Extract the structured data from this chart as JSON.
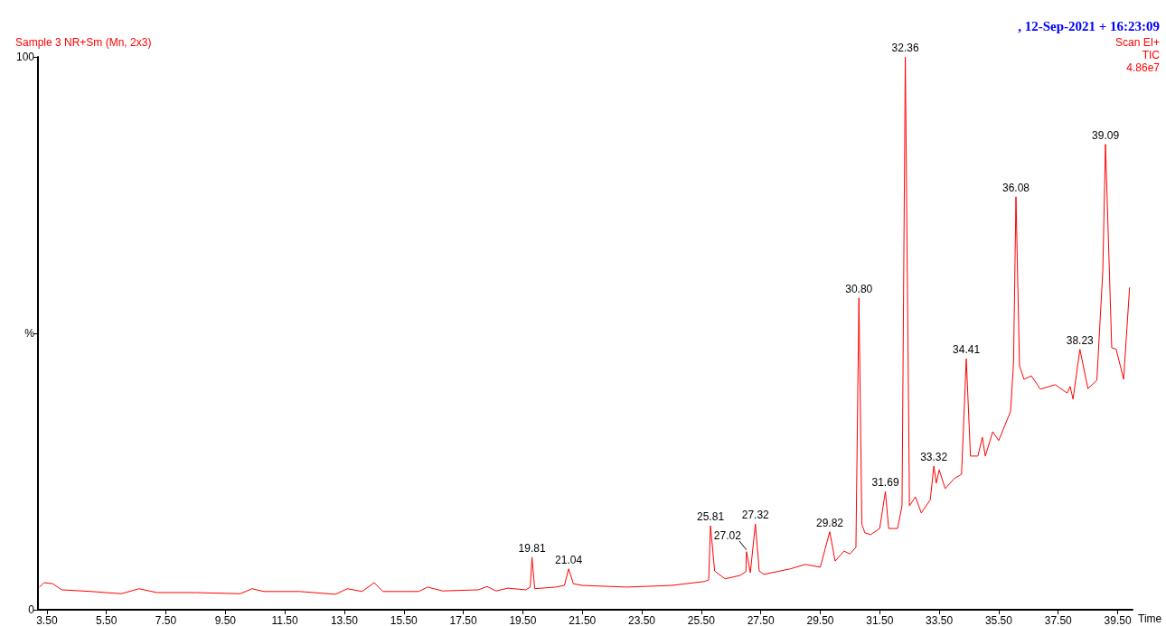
{
  "chart_data": {
    "type": "line",
    "title": "Sample 3 NR+Sm (Mn, 2x3)",
    "subtitle": ", 12-Sep-2021 + 16:23:09",
    "xlabel": "Time",
    "x": [
      3.25,
      3.4,
      3.7,
      4.0,
      5.0,
      6.0,
      6.6,
      7.2,
      8.5,
      10.0,
      10.4,
      10.8,
      12.0,
      13.2,
      13.6,
      14.1,
      14.5,
      14.8,
      16.0,
      16.3,
      16.8,
      18.0,
      18.3,
      18.6,
      19.0,
      19.6,
      19.75,
      19.81,
      19.9,
      20.6,
      20.9,
      21.04,
      21.2,
      21.5,
      23.0,
      24.5,
      25.6,
      25.75,
      25.81,
      25.95,
      26.3,
      26.8,
      27.0,
      27.02,
      27.15,
      27.32,
      27.45,
      27.6,
      28.5,
      29.0,
      29.5,
      29.82,
      30.0,
      30.3,
      30.5,
      30.7,
      30.8,
      30.9,
      31.0,
      31.2,
      31.5,
      31.69,
      31.8,
      32.1,
      32.25,
      32.36,
      32.5,
      32.7,
      32.9,
      33.2,
      33.32,
      33.4,
      33.5,
      33.7,
      34.0,
      34.25,
      34.41,
      34.55,
      34.8,
      34.95,
      35.05,
      35.3,
      35.5,
      35.9,
      36.0,
      36.08,
      36.2,
      36.35,
      36.6,
      36.9,
      37.4,
      37.8,
      37.9,
      38.0,
      38.23,
      38.5,
      38.8,
      39.0,
      39.09,
      39.3,
      39.45,
      39.7,
      39.9
    ],
    "series": [
      {
        "color": "#ff0000",
        "values": [
          4.1,
          4.9,
          4.7,
          3.6,
          3.3,
          2.9,
          3.8,
          3.1,
          3.1,
          2.9,
          3.8,
          3.3,
          3.3,
          2.8,
          3.8,
          3.3,
          4.9,
          3.3,
          3.3,
          4.1,
          3.4,
          3.6,
          4.2,
          3.4,
          3.9,
          3.6,
          4.1,
          9.5,
          3.8,
          4.1,
          4.4,
          7.4,
          4.7,
          4.4,
          4.1,
          4.4,
          5.1,
          5.4,
          15.2,
          7.0,
          5.6,
          6.2,
          6.9,
          10.5,
          6.7,
          15.5,
          7.0,
          6.4,
          7.4,
          8.2,
          7.7,
          14.1,
          8.8,
          10.6,
          10.1,
          11.3,
          56.4,
          15.5,
          13.9,
          13.6,
          14.7,
          21.4,
          14.7,
          14.7,
          18.8,
          100,
          18.8,
          20.4,
          17.5,
          19.9,
          26.0,
          22.9,
          25.3,
          21.9,
          23.7,
          24.5,
          45.4,
          27.8,
          27.8,
          31.2,
          27.8,
          32.2,
          30.6,
          35.9,
          44.9,
          74.7,
          44.1,
          41.7,
          42.3,
          39.9,
          40.7,
          39.2,
          40.4,
          38.1,
          47.1,
          40.0,
          41.5,
          61.3,
          84.2,
          47.4,
          47.1,
          41.7,
          58.3
        ]
      }
    ],
    "xlim": [
      3.2,
      40.0
    ],
    "xticks": [
      {
        "value": 3.5,
        "label": "3.50"
      },
      {
        "value": 5.5,
        "label": "5.50"
      },
      {
        "value": 7.5,
        "label": "7.50"
      },
      {
        "value": 9.5,
        "label": "9.50"
      },
      {
        "value": 11.5,
        "label": "11.50"
      },
      {
        "value": 13.5,
        "label": "13.50"
      },
      {
        "value": 15.5,
        "label": "15.50"
      },
      {
        "value": 17.5,
        "label": "17.50"
      },
      {
        "value": 19.5,
        "label": "19.50"
      },
      {
        "value": 21.5,
        "label": "21.50"
      },
      {
        "value": 23.5,
        "label": "23.50"
      },
      {
        "value": 25.5,
        "label": "25.50"
      },
      {
        "value": 27.5,
        "label": "27.50"
      },
      {
        "value": 29.5,
        "label": "29.50"
      },
      {
        "value": 31.5,
        "label": "31.50"
      },
      {
        "value": 33.5,
        "label": "33.50"
      },
      {
        "value": 35.5,
        "label": "35.50"
      },
      {
        "value": 37.5,
        "label": "37.50"
      },
      {
        "value": 39.5,
        "label": "39.50"
      }
    ],
    "ylim": [
      0,
      100
    ],
    "yticks": [
      0,
      {
        "value": 50,
        "label": "%"
      },
      100
    ],
    "grid": false,
    "marker": "none",
    "line_style": "solid",
    "annotations": [
      "Scan EI+",
      "TIC",
      "4.86e7",
      {
        "text": "19.81",
        "x": 19.81,
        "y": 9.5
      },
      {
        "text": "21.04",
        "x": 21.04,
        "y": 7.4
      },
      {
        "text": "25.81",
        "x": 25.81,
        "y": 15.2
      },
      {
        "text": "27.02",
        "x": 27.02,
        "y": 10.5
      },
      {
        "text": "27.32",
        "x": 27.32,
        "y": 15.5
      },
      {
        "text": "29.82",
        "x": 29.82,
        "y": 14.1
      },
      {
        "text": "30.80",
        "x": 30.8,
        "y": 56.4
      },
      {
        "text": "31.69",
        "x": 31.69,
        "y": 21.4
      },
      {
        "text": "32.36",
        "x": 32.36,
        "y": 100
      },
      {
        "text": "33.32",
        "x": 33.32,
        "y": 26.0
      },
      {
        "text": "34.41",
        "x": 34.41,
        "y": 45.4
      },
      {
        "text": "36.08",
        "x": 36.08,
        "y": 74.7
      },
      {
        "text": "38.23",
        "x": 38.23,
        "y": 47.1
      },
      {
        "text": "39.09",
        "x": 39.09,
        "y": 84.2
      }
    ]
  }
}
